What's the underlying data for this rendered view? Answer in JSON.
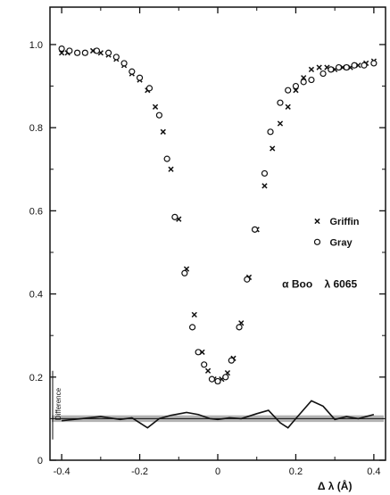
{
  "chart_data": {
    "type": "scatter",
    "title": "",
    "xlabel": "Δ λ (Å)",
    "ylabel": "",
    "xlim": [
      -0.43,
      0.43
    ],
    "ylim": [
      0,
      1.09
    ],
    "x_ticks": [
      -0.4,
      -0.2,
      0,
      0.2,
      0.4
    ],
    "x_tick_labels": [
      "-0.4",
      "-0.2",
      "0",
      "0.2",
      "0.4"
    ],
    "y_ticks": [
      0,
      0.2,
      0.4,
      0.6,
      0.8,
      1.0
    ],
    "y_tick_labels": [
      "0",
      "0.2",
      "0.4",
      "0.6",
      "0.8",
      "1.0"
    ],
    "grid": false,
    "legend_position": "right",
    "annotation": "α Boo    λ 6065",
    "difference_label": "Difference",
    "difference_band": [
      0.092,
      0.108
    ],
    "series": [
      {
        "name": "Griffin",
        "marker": "x",
        "points": [
          [
            -0.4,
            0.98
          ],
          [
            -0.385,
            0.98
          ],
          [
            -0.36,
            0.98
          ],
          [
            -0.34,
            0.98
          ],
          [
            -0.32,
            0.985
          ],
          [
            -0.3,
            0.98
          ],
          [
            -0.28,
            0.975
          ],
          [
            -0.26,
            0.965
          ],
          [
            -0.24,
            0.95
          ],
          [
            -0.22,
            0.93
          ],
          [
            -0.2,
            0.915
          ],
          [
            -0.18,
            0.89
          ],
          [
            -0.16,
            0.85
          ],
          [
            -0.14,
            0.79
          ],
          [
            -0.12,
            0.7
          ],
          [
            -0.1,
            0.58
          ],
          [
            -0.08,
            0.46
          ],
          [
            -0.06,
            0.35
          ],
          [
            -0.04,
            0.26
          ],
          [
            -0.025,
            0.215
          ],
          [
            -0.01,
            0.195
          ],
          [
            0.0,
            0.19
          ],
          [
            0.01,
            0.195
          ],
          [
            0.025,
            0.21
          ],
          [
            0.04,
            0.245
          ],
          [
            0.06,
            0.33
          ],
          [
            0.08,
            0.44
          ],
          [
            0.1,
            0.555
          ],
          [
            0.12,
            0.66
          ],
          [
            0.14,
            0.75
          ],
          [
            0.16,
            0.81
          ],
          [
            0.18,
            0.85
          ],
          [
            0.2,
            0.89
          ],
          [
            0.22,
            0.92
          ],
          [
            0.24,
            0.94
          ],
          [
            0.26,
            0.945
          ],
          [
            0.28,
            0.945
          ],
          [
            0.3,
            0.94
          ],
          [
            0.32,
            0.945
          ],
          [
            0.34,
            0.945
          ],
          [
            0.36,
            0.95
          ],
          [
            0.38,
            0.955
          ],
          [
            0.4,
            0.96
          ]
        ]
      },
      {
        "name": "Gray",
        "marker": "o",
        "points": [
          [
            -0.4,
            0.99
          ],
          [
            -0.38,
            0.985
          ],
          [
            -0.36,
            0.98
          ],
          [
            -0.34,
            0.98
          ],
          [
            -0.31,
            0.985
          ],
          [
            -0.28,
            0.98
          ],
          [
            -0.26,
            0.97
          ],
          [
            -0.24,
            0.955
          ],
          [
            -0.22,
            0.935
          ],
          [
            -0.2,
            0.92
          ],
          [
            -0.175,
            0.895
          ],
          [
            -0.15,
            0.83
          ],
          [
            -0.13,
            0.725
          ],
          [
            -0.11,
            0.585
          ],
          [
            -0.085,
            0.45
          ],
          [
            -0.065,
            0.32
          ],
          [
            -0.05,
            0.26
          ],
          [
            -0.035,
            0.23
          ],
          [
            -0.015,
            0.195
          ],
          [
            0.0,
            0.19
          ],
          [
            0.02,
            0.2
          ],
          [
            0.035,
            0.24
          ],
          [
            0.055,
            0.32
          ],
          [
            0.075,
            0.435
          ],
          [
            0.095,
            0.555
          ],
          [
            0.12,
            0.69
          ],
          [
            0.135,
            0.79
          ],
          [
            0.16,
            0.86
          ],
          [
            0.18,
            0.89
          ],
          [
            0.2,
            0.9
          ],
          [
            0.22,
            0.91
          ],
          [
            0.24,
            0.915
          ],
          [
            0.27,
            0.93
          ],
          [
            0.29,
            0.94
          ],
          [
            0.31,
            0.945
          ],
          [
            0.33,
            0.945
          ],
          [
            0.35,
            0.95
          ],
          [
            0.375,
            0.95
          ],
          [
            0.4,
            0.955
          ]
        ]
      },
      {
        "name": "Difference",
        "type": "line",
        "points": [
          [
            -0.4,
            0.095
          ],
          [
            -0.35,
            0.1
          ],
          [
            -0.3,
            0.105
          ],
          [
            -0.25,
            0.098
          ],
          [
            -0.22,
            0.102
          ],
          [
            -0.2,
            0.09
          ],
          [
            -0.18,
            0.078
          ],
          [
            -0.15,
            0.1
          ],
          [
            -0.12,
            0.108
          ],
          [
            -0.08,
            0.115
          ],
          [
            -0.05,
            0.11
          ],
          [
            -0.02,
            0.1
          ],
          [
            0.0,
            0.098
          ],
          [
            0.03,
            0.102
          ],
          [
            0.06,
            0.1
          ],
          [
            0.1,
            0.112
          ],
          [
            0.13,
            0.12
          ],
          [
            0.16,
            0.09
          ],
          [
            0.18,
            0.078
          ],
          [
            0.2,
            0.1
          ],
          [
            0.24,
            0.143
          ],
          [
            0.27,
            0.13
          ],
          [
            0.3,
            0.098
          ],
          [
            0.33,
            0.105
          ],
          [
            0.36,
            0.1
          ],
          [
            0.4,
            0.11
          ]
        ]
      }
    ]
  },
  "colors": {
    "ink": "#111111",
    "band": "#9a9a9a",
    "background": "#ffffff"
  }
}
